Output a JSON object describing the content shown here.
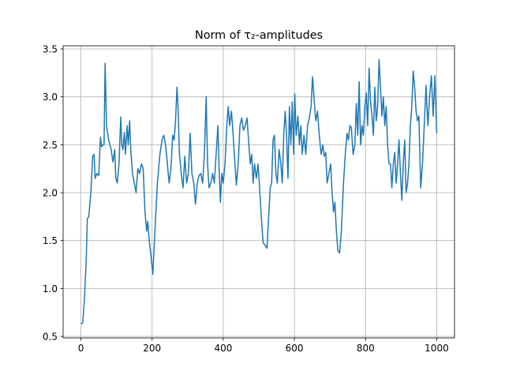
{
  "chart_data": {
    "type": "line",
    "title": "Norm of τ₂-amplitudes",
    "x": [
      0,
      5,
      10,
      15,
      18,
      22,
      28,
      33,
      37,
      40,
      45,
      50,
      55,
      58,
      62,
      65,
      68,
      72,
      78,
      85,
      90,
      95,
      98,
      102,
      107,
      112,
      115,
      118,
      122,
      125,
      130,
      133,
      137,
      140,
      145,
      150,
      155,
      160,
      165,
      170,
      175,
      180,
      185,
      188,
      192,
      198,
      202,
      208,
      215,
      222,
      228,
      233,
      238,
      243,
      248,
      253,
      258,
      262,
      266,
      270,
      273,
      277,
      282,
      287,
      292,
      297,
      302,
      307,
      312,
      317,
      322,
      327,
      332,
      337,
      342,
      347,
      352,
      356,
      360,
      365,
      370,
      375,
      380,
      385,
      388,
      392,
      396,
      400,
      405,
      410,
      414,
      418,
      423,
      428,
      433,
      437,
      442,
      447,
      452,
      457,
      462,
      467,
      472,
      476,
      480,
      484,
      488,
      493,
      498,
      503,
      507,
      512,
      518,
      523,
      527,
      532,
      536,
      540,
      544,
      548,
      552,
      557,
      562,
      566,
      570,
      574,
      578,
      582,
      586,
      590,
      594,
      598,
      601,
      605,
      610,
      614,
      618,
      622,
      627,
      632,
      637,
      642,
      647,
      651,
      655,
      660,
      665,
      670,
      675,
      680,
      684,
      688,
      692,
      697,
      702,
      706,
      710,
      714,
      718,
      722,
      727,
      732,
      738,
      743,
      748,
      752,
      756,
      760,
      765,
      770,
      774,
      778,
      782,
      786,
      790,
      794,
      798,
      802,
      806,
      810,
      814,
      818,
      822,
      826,
      830,
      834,
      838,
      842,
      846,
      850,
      854,
      858,
      862,
      866,
      870,
      874,
      878,
      882,
      886,
      890,
      894,
      898,
      902,
      906,
      910,
      914,
      918,
      922,
      926,
      930,
      934,
      938,
      942,
      946,
      950,
      955,
      960,
      965,
      970,
      975,
      980,
      985,
      990,
      995,
      1000
    ],
    "series": [
      {
        "color": "#1f77b4",
        "values": [
          0.63,
          0.64,
          0.9,
          1.3,
          1.73,
          1.75,
          2.0,
          2.38,
          2.4,
          2.15,
          2.2,
          2.18,
          2.58,
          2.48,
          2.5,
          2.5,
          3.35,
          2.7,
          2.55,
          2.45,
          2.32,
          2.45,
          2.15,
          2.1,
          2.3,
          2.79,
          2.5,
          2.45,
          2.63,
          2.4,
          2.7,
          2.5,
          2.75,
          2.45,
          2.2,
          2.1,
          2.0,
          2.25,
          2.2,
          2.3,
          2.25,
          1.8,
          1.6,
          1.7,
          1.5,
          1.3,
          1.15,
          1.6,
          2.1,
          2.4,
          2.55,
          2.6,
          2.5,
          2.3,
          2.1,
          2.25,
          2.6,
          2.55,
          2.75,
          3.1,
          2.9,
          2.4,
          2.2,
          2.05,
          2.38,
          2.1,
          2.2,
          2.62,
          2.2,
          2.1,
          1.88,
          2.1,
          2.18,
          2.2,
          2.1,
          2.4,
          3.0,
          2.3,
          2.05,
          2.1,
          2.2,
          2.1,
          2.4,
          2.7,
          2.3,
          1.9,
          2.2,
          2.1,
          2.3,
          2.7,
          2.9,
          2.7,
          2.85,
          2.6,
          2.3,
          2.08,
          2.3,
          2.7,
          2.78,
          2.65,
          2.7,
          2.78,
          2.5,
          2.3,
          2.4,
          2.1,
          2.3,
          2.15,
          2.3,
          2.0,
          1.75,
          1.48,
          1.45,
          1.42,
          1.7,
          2.05,
          2.1,
          2.55,
          2.6,
          2.2,
          2.1,
          2.45,
          2.3,
          2.1,
          2.6,
          2.85,
          2.6,
          2.15,
          2.9,
          2.5,
          2.95,
          2.4,
          3.03,
          2.6,
          2.8,
          2.5,
          2.7,
          2.4,
          2.6,
          2.4,
          2.7,
          2.78,
          2.9,
          3.21,
          3.0,
          2.75,
          2.85,
          2.6,
          2.4,
          2.5,
          2.38,
          2.42,
          2.1,
          2.2,
          2.3,
          2.0,
          1.8,
          1.9,
          1.6,
          1.4,
          1.37,
          1.6,
          2.1,
          2.4,
          2.62,
          2.55,
          2.7,
          2.68,
          2.4,
          2.5,
          2.93,
          2.6,
          3.16,
          2.5,
          2.7,
          2.6,
          2.9,
          3.04,
          2.7,
          3.3,
          2.95,
          2.8,
          2.6,
          3.1,
          2.75,
          2.9,
          3.39,
          3.1,
          2.8,
          3.0,
          2.7,
          2.9,
          2.5,
          2.3,
          2.3,
          2.05,
          2.3,
          2.42,
          2.1,
          2.3,
          2.55,
          2.2,
          1.92,
          2.3,
          2.55,
          2.0,
          2.1,
          2.3,
          2.7,
          2.9,
          3.27,
          3.1,
          2.85,
          2.75,
          2.8,
          2.05,
          2.3,
          2.7,
          3.12,
          2.7,
          3.0,
          3.22,
          2.8,
          3.22,
          2.62
        ]
      }
    ],
    "xlim": [
      -50,
      1050
    ],
    "ylim": [
      0.484,
      3.533
    ],
    "xticks": [
      0,
      200,
      400,
      600,
      800,
      1000
    ],
    "yticks": [
      0.5,
      {
        "value": 1.0,
        "label": "1.0"
      },
      1.5,
      {
        "value": 2.0,
        "label": "2.0"
      },
      2.5,
      {
        "value": 3.0,
        "label": "3.0"
      },
      3.5
    ],
    "grid": true
  }
}
